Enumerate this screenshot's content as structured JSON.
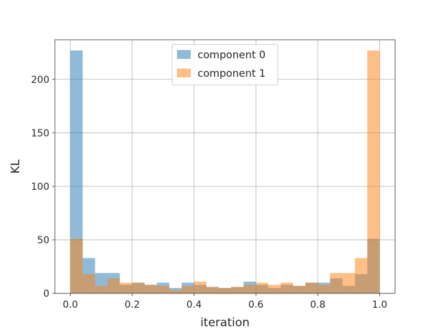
{
  "chart_data": {
    "type": "bar",
    "subtype": "histogram-overlay",
    "title": "",
    "xlabel": "iteration",
    "ylabel": "KL",
    "xlim": [
      -0.05,
      1.05
    ],
    "ylim": [
      0,
      237
    ],
    "x_ticks": [
      "0.0",
      "0.2",
      "0.4",
      "0.6",
      "0.8",
      "1.0"
    ],
    "y_ticks": [
      "0",
      "50",
      "100",
      "150",
      "200"
    ],
    "grid": true,
    "legend_position": "top-center",
    "bin_edges": [
      0.0,
      0.04,
      0.08,
      0.12,
      0.16,
      0.2,
      0.24,
      0.28,
      0.32,
      0.36,
      0.4,
      0.44,
      0.48,
      0.52,
      0.56,
      0.6,
      0.64,
      0.68,
      0.72,
      0.76,
      0.8,
      0.84,
      0.88,
      0.92,
      0.96,
      1.0
    ],
    "series": [
      {
        "name": "component 0",
        "color": "#1f77b4",
        "values": [
          227,
          33,
          19,
          19,
          8,
          10,
          8,
          10,
          5,
          10,
          8,
          6,
          5,
          6,
          11,
          8,
          5,
          8,
          7,
          10,
          10,
          14,
          7,
          18,
          51
        ]
      },
      {
        "name": "component 1",
        "color": "#ff7f0e",
        "values": [
          51,
          18,
          7,
          14,
          10,
          10,
          8,
          7,
          3,
          7,
          11,
          6,
          5,
          6,
          8,
          10,
          8,
          10,
          7,
          10,
          8,
          19,
          19,
          33,
          227
        ]
      }
    ],
    "bar_opacity": 0.5
  }
}
